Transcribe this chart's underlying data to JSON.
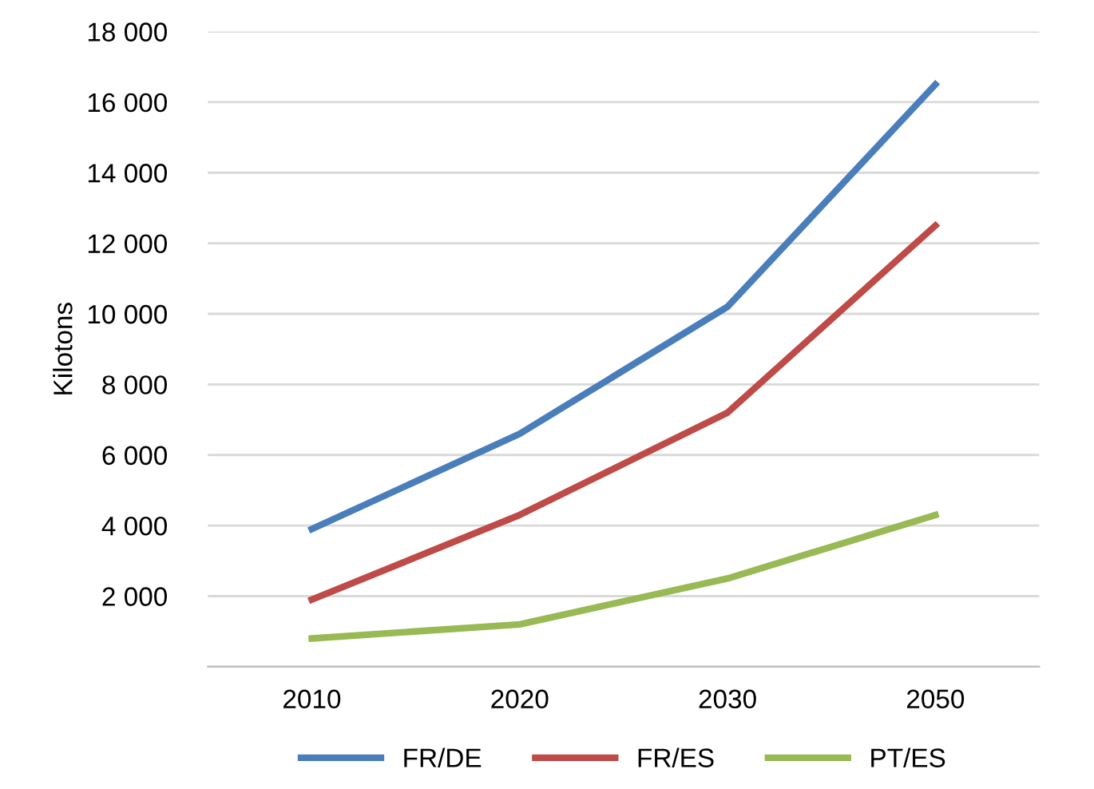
{
  "chart_data": {
    "type": "line",
    "ylabel": "Kilotons",
    "categories": [
      "2010",
      "2020",
      "2030",
      "2050"
    ],
    "series": [
      {
        "name": "FR/DE",
        "color": "#4a7ebb",
        "values": [
          3900,
          6600,
          10200,
          16500
        ]
      },
      {
        "name": "FR/ES",
        "color": "#be4b48",
        "values": [
          1900,
          4300,
          7200,
          12500
        ]
      },
      {
        "name": "PT/ES",
        "color": "#98b954",
        "values": [
          800,
          1200,
          2500,
          4300
        ]
      }
    ],
    "ylim": [
      0,
      18000
    ],
    "yticks": [
      {
        "value": 0,
        "label": null
      },
      {
        "value": 2000,
        "label": "2 000"
      },
      {
        "value": 4000,
        "label": "4 000"
      },
      {
        "value": 6000,
        "label": "6 000"
      },
      {
        "value": 8000,
        "label": "8 000"
      },
      {
        "value": 10000,
        "label": "10 000"
      },
      {
        "value": 12000,
        "label": "12 000"
      },
      {
        "value": 14000,
        "label": "14 000"
      },
      {
        "value": 16000,
        "label": "16 000"
      },
      {
        "value": 18000,
        "label": "18 000"
      }
    ],
    "grid": "y",
    "legend": "bottom",
    "marker": "none",
    "line_style": "solid"
  }
}
